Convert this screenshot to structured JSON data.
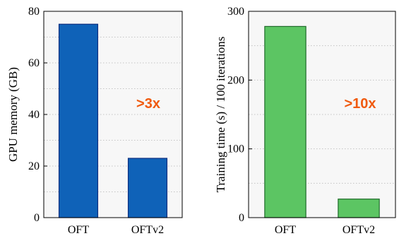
{
  "chart_data": [
    {
      "type": "bar",
      "categories": [
        "OFT",
        "OFTv2"
      ],
      "values": [
        75,
        23
      ],
      "ylabel": "GPU memory (GB)",
      "xlabel": "",
      "ylim": [
        0,
        80
      ],
      "yticks": [
        0,
        20,
        40,
        60,
        80
      ],
      "minor_grid_step": 10,
      "bar_color": "#0f62b8",
      "bar_edge_color": "#0d2f80",
      "annotation": ">3x",
      "annotation_color": "#f05a0f",
      "grid": true
    },
    {
      "type": "bar",
      "categories": [
        "OFT",
        "OFTv2"
      ],
      "values": [
        278,
        27
      ],
      "ylabel": "Training time (s) / 100 iterations",
      "xlabel": "",
      "ylim": [
        0,
        300
      ],
      "yticks": [
        0,
        100,
        200,
        300
      ],
      "minor_grid_step": 50,
      "bar_color": "#5cc563",
      "bar_edge_color": "#1f6b2a",
      "annotation": ">10x",
      "annotation_color": "#f05a0f",
      "grid": true
    }
  ]
}
